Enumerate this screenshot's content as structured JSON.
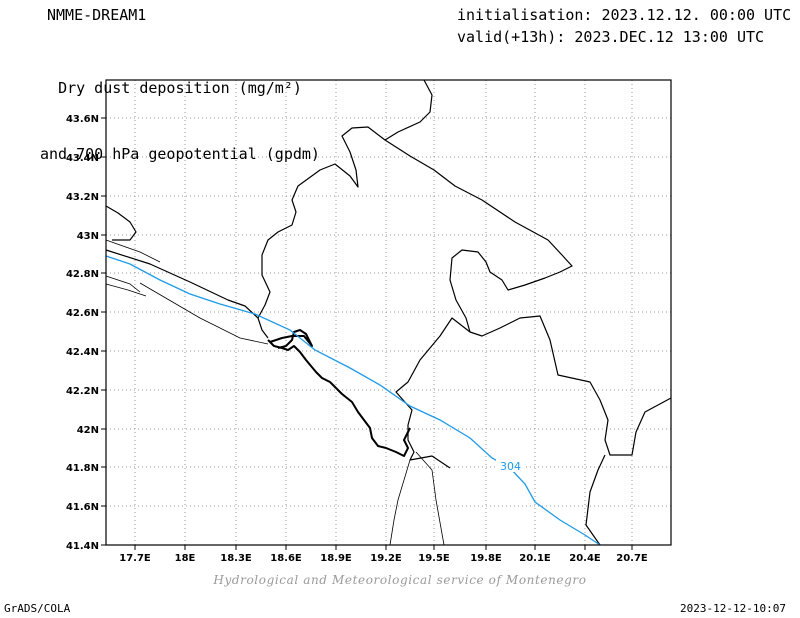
{
  "header": {
    "model": "NMME-DREAM1",
    "product_line1": "Dry dust deposition (mg/m²)",
    "product_line2": "and 700 hPa geopotential (gpdm)",
    "initialisation": "initialisation: 2023.12.12. 00:00 UTC",
    "valid": "valid(+13h): 2023.DEC.12 13:00 UTC"
  },
  "map": {
    "lon_range": [
      17.55,
      21.0
    ],
    "lat_range": [
      41.4,
      43.78
    ],
    "lon_ticks": [
      "17.7E",
      "18E",
      "18.3E",
      "18.6E",
      "18.9E",
      "19.2E",
      "19.5E",
      "19.8E",
      "20.1E",
      "20.4E",
      "20.7E"
    ],
    "lat_ticks": [
      "43.6N",
      "43.4N",
      "43.2N",
      "43N",
      "42.8N",
      "42.6N",
      "42.4N",
      "42.2N",
      "42N",
      "41.8N",
      "41.6N",
      "41.4N"
    ],
    "grid": "dotted",
    "contour_label": "304",
    "contour_color": "#1e9be8",
    "border_color": "#000000"
  },
  "footer": {
    "credit": "Hydrological and Meteorological service of Montenegro",
    "software": "GrADS/COLA",
    "timestamp": "2023-12-12-10:07"
  }
}
